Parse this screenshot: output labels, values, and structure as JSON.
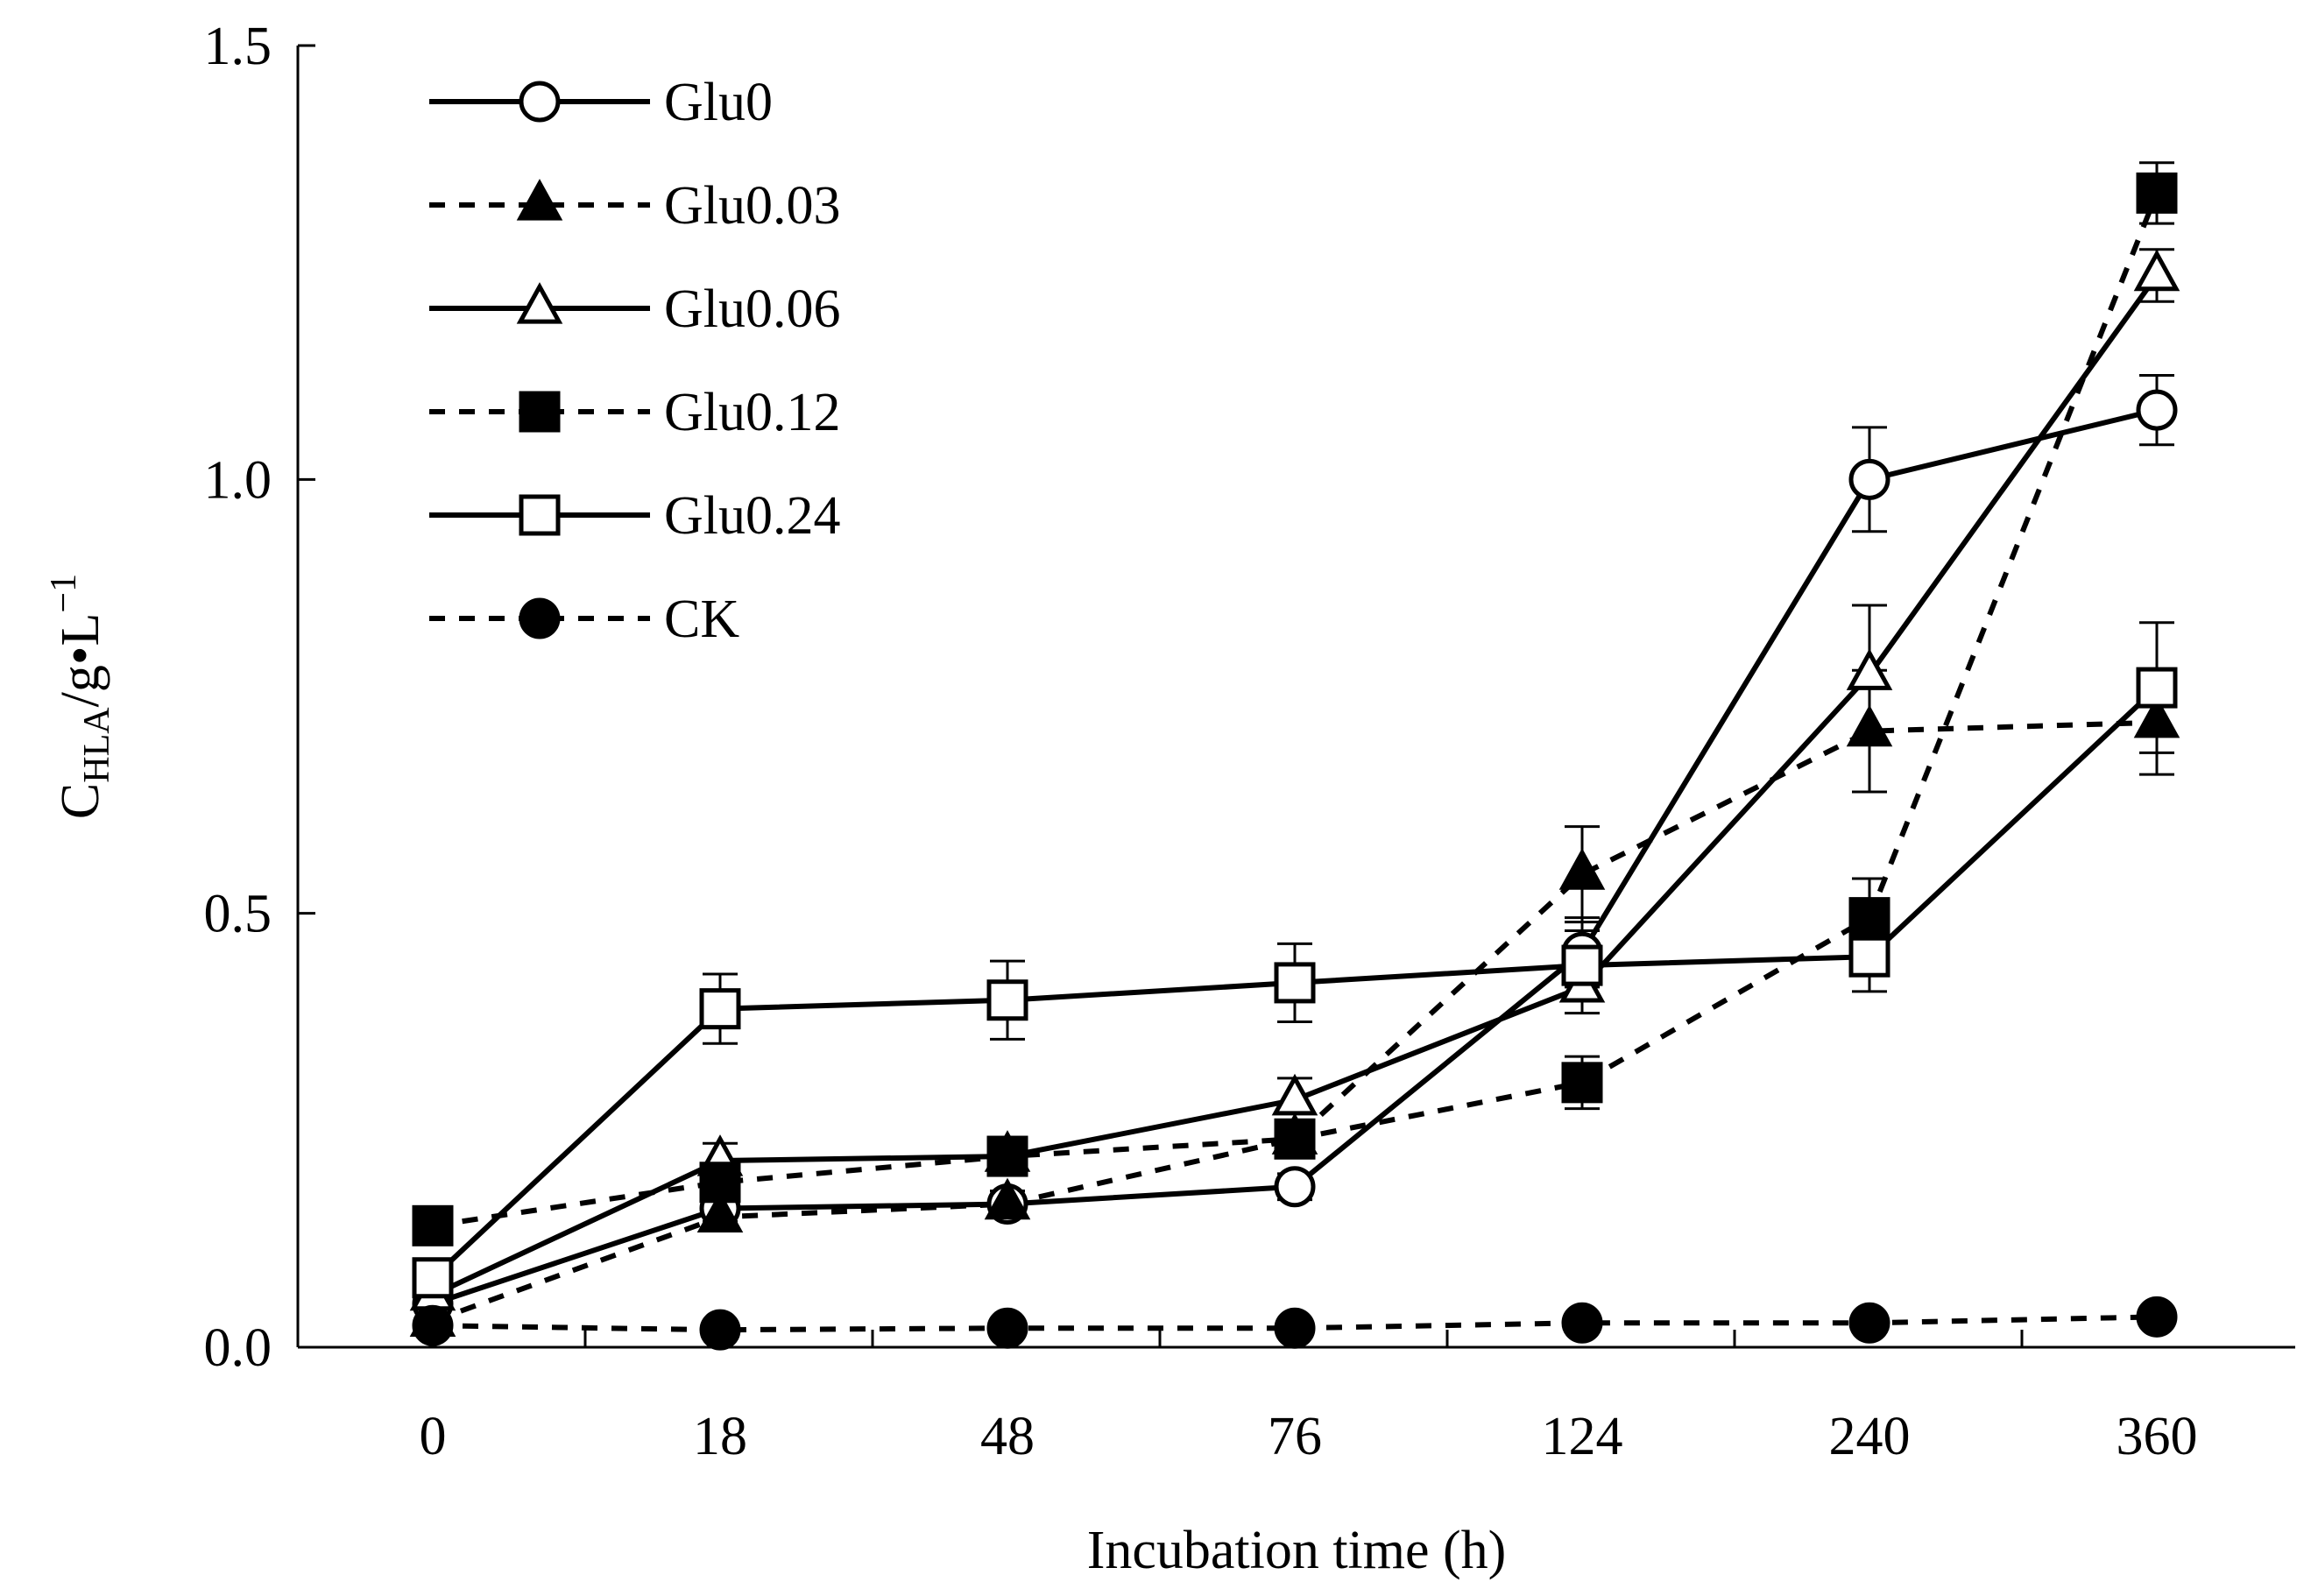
{
  "chart_data": {
    "type": "line",
    "title": "",
    "xlabel": "Incubation time (h)",
    "ylabel": {
      "main": "C",
      "sub": "HLA",
      "unit": "/g•L",
      "sup": "−1"
    },
    "categories": [
      "0",
      "18",
      "48",
      "76",
      "124",
      "240",
      "360"
    ],
    "ylim": [
      0,
      1.5
    ],
    "yticks": [
      "0.0",
      "0.5",
      "1.0",
      "1.5"
    ],
    "grid": false,
    "legend_position": "top-left",
    "series": [
      {
        "name": "Glu0",
        "marker": "circle",
        "filled": false,
        "dashed": false,
        "values": [
          0.05,
          0.16,
          0.165,
          0.185,
          0.455,
          1.0,
          1.08
        ],
        "errors": [
          0.01,
          0.015,
          0.015,
          0.015,
          0.04,
          0.06,
          0.04
        ]
      },
      {
        "name": "Glu0.03",
        "marker": "triangle",
        "filled": true,
        "dashed": true,
        "values": [
          0.03,
          0.15,
          0.165,
          0.24,
          0.545,
          0.71,
          0.72
        ],
        "errors": [
          0.01,
          0.015,
          0.015,
          0.02,
          0.055,
          0.07,
          0.06
        ]
      },
      {
        "name": "Glu0.06",
        "marker": "triangle",
        "filled": false,
        "dashed": false,
        "values": [
          0.06,
          0.215,
          0.22,
          0.285,
          0.415,
          0.775,
          1.235
        ],
        "errors": [
          0.01,
          0.02,
          0.02,
          0.025,
          0.03,
          0.08,
          0.03
        ]
      },
      {
        "name": "Glu0.12",
        "marker": "square",
        "filled": true,
        "dashed": true,
        "values": [
          0.14,
          0.19,
          0.22,
          0.24,
          0.305,
          0.495,
          1.33
        ],
        "errors": [
          0.01,
          0.02,
          0.02,
          0.02,
          0.03,
          0.045,
          0.035
        ]
      },
      {
        "name": "Glu0.24",
        "marker": "square",
        "filled": false,
        "dashed": false,
        "values": [
          0.08,
          0.39,
          0.4,
          0.42,
          0.44,
          0.45,
          0.76
        ],
        "errors": [
          0.01,
          0.04,
          0.045,
          0.045,
          0.04,
          0.04,
          0.075
        ]
      },
      {
        "name": "CK",
        "marker": "circle",
        "filled": true,
        "dashed": true,
        "values": [
          0.025,
          0.02,
          0.022,
          0.022,
          0.028,
          0.028,
          0.035
        ],
        "errors": [
          0,
          0,
          0,
          0,
          0,
          0,
          0
        ]
      }
    ]
  }
}
